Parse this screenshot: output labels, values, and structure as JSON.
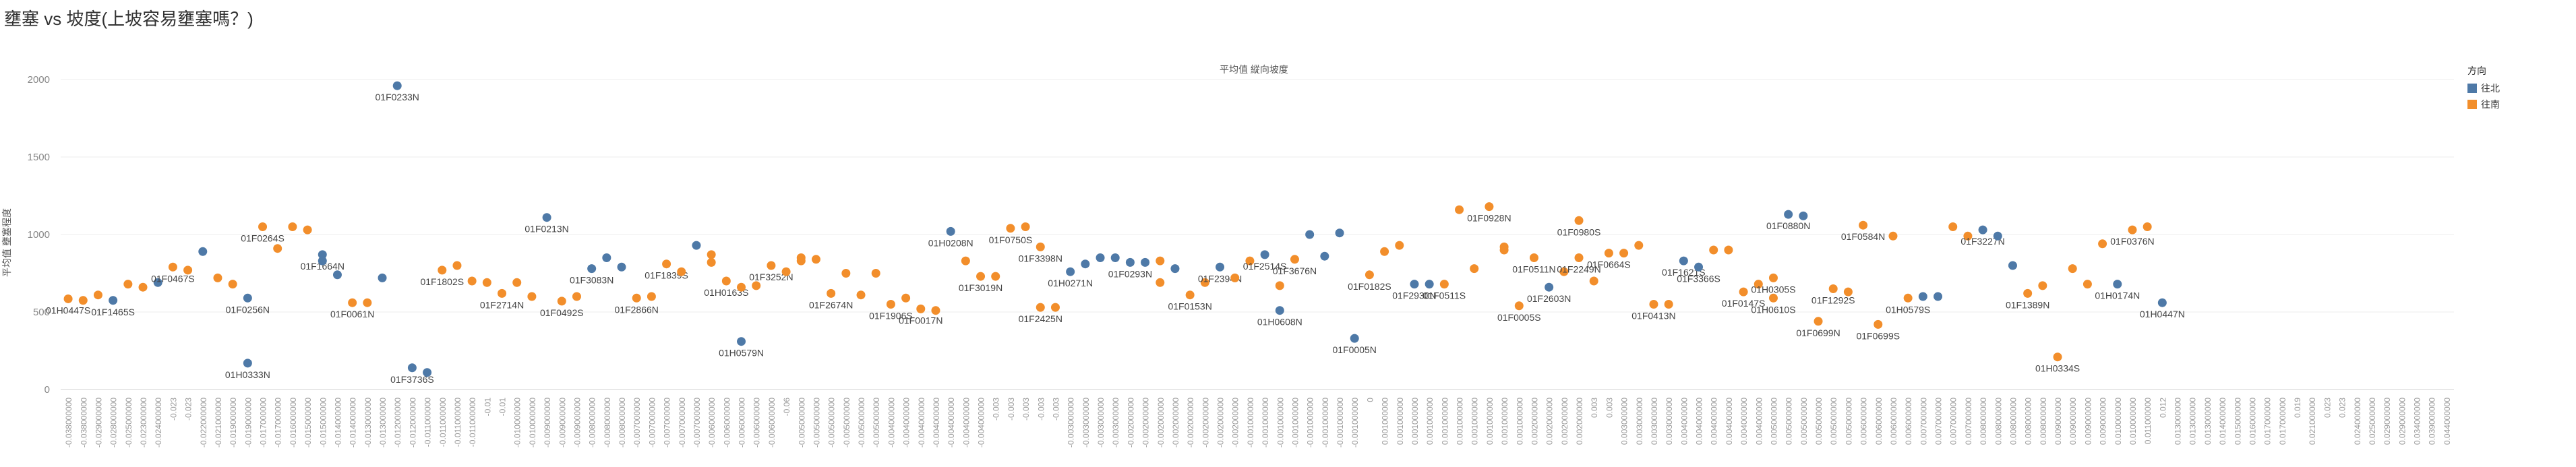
{
  "header": {
    "title": "壅塞 vs 坡度(上坡容易壅塞嗎？)"
  },
  "colors": {
    "north": "#4e79a7",
    "south": "#f28e2b",
    "grid": "#ececec",
    "axis": "#d0d0d0"
  },
  "chart_data": {
    "type": "scatter",
    "title": "平均值 縱向坡度",
    "xlabel": "",
    "ylabel": "平均值 壅塞程度",
    "ylim": [
      0,
      2000
    ],
    "yticks": [
      0,
      500,
      1000,
      1500,
      2000
    ],
    "grid": true,
    "legend_placement": "right",
    "legend_title": "方向",
    "series": [
      {
        "name": "往北",
        "color_key": "north"
      },
      {
        "name": "往南",
        "color_key": "south"
      }
    ],
    "categories": [
      "-0.038000000",
      "-0.038000000",
      "-0.029000000",
      "-0.028000000",
      "-0.025000000",
      "-0.023000000",
      "-0.024000000",
      "-0.023",
      "-0.023",
      "-0.022000000",
      "-0.021000000",
      "-0.019000000",
      "-0.019000000",
      "-0.017000000",
      "-0.017000000",
      "-0.016000000",
      "-0.015000000",
      "-0.015000000",
      "-0.014000000",
      "-0.014000000",
      "-0.013000000",
      "-0.013000000",
      "-0.012000000",
      "-0.012000000",
      "-0.011000000",
      "-0.011000000",
      "-0.011000000",
      "-0.011000000",
      "-0.01",
      "-0.01",
      "-0.010000000",
      "-0.010000000",
      "-0.009000000",
      "-0.009000000",
      "-0.009000000",
      "-0.008000000",
      "-0.008000000",
      "-0.008000000",
      "-0.007000000",
      "-0.007000000",
      "-0.007000000",
      "-0.007000000",
      "-0.007000000",
      "-0.006000000",
      "-0.006000000",
      "-0.006000000",
      "-0.006000000",
      "-0.006000000",
      "-0.06",
      "-0.005000000",
      "-0.005000000",
      "-0.005000000",
      "-0.005000000",
      "-0.005000000",
      "-0.005000000",
      "-0.004000000",
      "-0.004000000",
      "-0.004000000",
      "-0.004000000",
      "-0.004000000",
      "-0.004000000",
      "-0.004000000",
      "-0.003",
      "-0.003",
      "-0.003",
      "-0.003",
      "-0.003",
      "-0.003000000",
      "-0.003000000",
      "-0.003000000",
      "-0.003000000",
      "-0.002000000",
      "-0.002000000",
      "-0.002000000",
      "-0.002000000",
      "-0.002000000",
      "-0.002000000",
      "-0.002000000",
      "-0.002000000",
      "-0.001000000",
      "-0.001000000",
      "-0.001000000",
      "-0.001000000",
      "-0.001000000",
      "-0.001000000",
      "-0.001000000",
      "-0.001000000",
      "0",
      "0.001000000",
      "0.001000000",
      "0.001000000",
      "0.001000000",
      "0.001000000",
      "0.001000000",
      "0.001000000",
      "0.001000000",
      "0.001000000",
      "0.001000000",
      "0.002000000",
      "0.002000000",
      "0.002000000",
      "0.002000000",
      "0.003",
      "0.003",
      "0.003000000",
      "0.003000000",
      "0.003000000",
      "0.003000000",
      "0.004000000",
      "0.004000000",
      "0.004000000",
      "0.004000000",
      "0.004000000",
      "0.004000000",
      "0.005000000",
      "0.005000000",
      "0.005000000",
      "0.005000000",
      "0.005000000",
      "0.005000000",
      "0.006000000",
      "0.006000000",
      "0.006000000",
      "0.006000000",
      "0.007000000",
      "0.007000000",
      "0.007000000",
      "0.007000000",
      "0.008000000",
      "0.008000000",
      "0.008000000",
      "0.008000000",
      "0.008000000",
      "0.009000000",
      "0.009000000",
      "0.009000000",
      "0.009000000",
      "0.010000000",
      "0.010000000",
      "0.011000000",
      "0.012",
      "0.013000000",
      "0.013000000",
      "0.013000000",
      "0.014000000",
      "0.015000000",
      "0.016000000",
      "0.017000000",
      "0.017000000",
      "0.019",
      "0.021000000",
      "0.023",
      "0.023",
      "0.024000000",
      "0.025000000",
      "0.029000000",
      "0.029000000",
      "0.034000000",
      "0.039000000",
      "0.044000000"
    ],
    "points": [
      {
        "i": 0,
        "y": 585,
        "s": 1,
        "l": "01H0447S"
      },
      {
        "i": 1,
        "y": 575,
        "s": 1
      },
      {
        "i": 2,
        "y": 610,
        "s": 1
      },
      {
        "i": 3,
        "y": 575,
        "s": 0,
        "l": "01F1465S"
      },
      {
        "i": 4,
        "y": 680,
        "s": 1
      },
      {
        "i": 5,
        "y": 660,
        "s": 1
      },
      {
        "i": 6,
        "y": 690,
        "s": 0
      },
      {
        "i": 7,
        "y": 790,
        "s": 1,
        "l": "01F0467S"
      },
      {
        "i": 8,
        "y": 770,
        "s": 1
      },
      {
        "i": 9,
        "y": 890,
        "s": 0
      },
      {
        "i": 10,
        "y": 720,
        "s": 1
      },
      {
        "i": 11,
        "y": 680,
        "s": 1
      },
      {
        "i": 12,
        "y": 590,
        "s": 0,
        "l": "01F0256N"
      },
      {
        "i": 12,
        "y": 170,
        "s": 0,
        "l": "01H0333N"
      },
      {
        "i": 13,
        "y": 1050,
        "s": 1,
        "l": "01F0264S"
      },
      {
        "i": 14,
        "y": 910,
        "s": 1
      },
      {
        "i": 15,
        "y": 1050,
        "s": 1
      },
      {
        "i": 16,
        "y": 1030,
        "s": 1
      },
      {
        "i": 17,
        "y": 870,
        "s": 0,
        "l": "01F1664N"
      },
      {
        "i": 17,
        "y": 830,
        "s": 0
      },
      {
        "i": 18,
        "y": 740,
        "s": 0
      },
      {
        "i": 19,
        "y": 560,
        "s": 1,
        "l": "01F0061N"
      },
      {
        "i": 20,
        "y": 560,
        "s": 1
      },
      {
        "i": 21,
        "y": 720,
        "s": 0
      },
      {
        "i": 22,
        "y": 1960,
        "s": 0,
        "l": "01F0233N"
      },
      {
        "i": 23,
        "y": 140,
        "s": 0,
        "l": "01F3736S"
      },
      {
        "i": 24,
        "y": 110,
        "s": 0
      },
      {
        "i": 25,
        "y": 770,
        "s": 1,
        "l": "01F1802S"
      },
      {
        "i": 26,
        "y": 800,
        "s": 1
      },
      {
        "i": 27,
        "y": 700,
        "s": 1
      },
      {
        "i": 28,
        "y": 690,
        "s": 1
      },
      {
        "i": 29,
        "y": 620,
        "s": 1,
        "l": "01F2714N"
      },
      {
        "i": 30,
        "y": 690,
        "s": 1
      },
      {
        "i": 31,
        "y": 600,
        "s": 1
      },
      {
        "i": 32,
        "y": 1110,
        "s": 0,
        "l": "01F0213N"
      },
      {
        "i": 33,
        "y": 570,
        "s": 1,
        "l": "01F0492S"
      },
      {
        "i": 34,
        "y": 600,
        "s": 1
      },
      {
        "i": 35,
        "y": 780,
        "s": 0,
        "l": "01F3083N"
      },
      {
        "i": 36,
        "y": 850,
        "s": 0
      },
      {
        "i": 37,
        "y": 790,
        "s": 0
      },
      {
        "i": 38,
        "y": 590,
        "s": 1,
        "l": "01F2866N"
      },
      {
        "i": 39,
        "y": 600,
        "s": 1
      },
      {
        "i": 40,
        "y": 810,
        "s": 1,
        "l": "01F1839S"
      },
      {
        "i": 41,
        "y": 760,
        "s": 1
      },
      {
        "i": 42,
        "y": 930,
        "s": 0
      },
      {
        "i": 43,
        "y": 870,
        "s": 1
      },
      {
        "i": 43,
        "y": 820,
        "s": 1
      },
      {
        "i": 44,
        "y": 700,
        "s": 1,
        "l": "01H0163S"
      },
      {
        "i": 45,
        "y": 310,
        "s": 0,
        "l": "01H0579N"
      },
      {
        "i": 45,
        "y": 660,
        "s": 1
      },
      {
        "i": 46,
        "y": 670,
        "s": 1
      },
      {
        "i": 47,
        "y": 800,
        "s": 1,
        "l": "01F3252N"
      },
      {
        "i": 48,
        "y": 760,
        "s": 1
      },
      {
        "i": 49,
        "y": 830,
        "s": 1
      },
      {
        "i": 49,
        "y": 850,
        "s": 1
      },
      {
        "i": 50,
        "y": 840,
        "s": 1
      },
      {
        "i": 51,
        "y": 620,
        "s": 1,
        "l": "01F2674N"
      },
      {
        "i": 52,
        "y": 750,
        "s": 1
      },
      {
        "i": 53,
        "y": 610,
        "s": 1
      },
      {
        "i": 54,
        "y": 750,
        "s": 1
      },
      {
        "i": 55,
        "y": 550,
        "s": 1,
        "l": "01F1906S"
      },
      {
        "i": 56,
        "y": 590,
        "s": 1
      },
      {
        "i": 57,
        "y": 520,
        "s": 1,
        "l": "01F0017N"
      },
      {
        "i": 58,
        "y": 510,
        "s": 1
      },
      {
        "i": 59,
        "y": 1020,
        "s": 0,
        "l": "01H0208N"
      },
      {
        "i": 60,
        "y": 830,
        "s": 1
      },
      {
        "i": 61,
        "y": 730,
        "s": 1,
        "l": "01F3019N"
      },
      {
        "i": 62,
        "y": 730,
        "s": 1
      },
      {
        "i": 63,
        "y": 1040,
        "s": 1,
        "l": "01F0750S"
      },
      {
        "i": 64,
        "y": 1050,
        "s": 1
      },
      {
        "i": 65,
        "y": 920,
        "s": 1,
        "l": "01F3398N"
      },
      {
        "i": 65,
        "y": 530,
        "s": 1,
        "l": "01F2425N"
      },
      {
        "i": 66,
        "y": 530,
        "s": 1
      },
      {
        "i": 67,
        "y": 760,
        "s": 0,
        "l": "01H0271N"
      },
      {
        "i": 68,
        "y": 810,
        "s": 0
      },
      {
        "i": 69,
        "y": 850,
        "s": 0
      },
      {
        "i": 70,
        "y": 850,
        "s": 0
      },
      {
        "i": 71,
        "y": 820,
        "s": 0,
        "l": "01F0293N"
      },
      {
        "i": 72,
        "y": 820,
        "s": 0
      },
      {
        "i": 73,
        "y": 830,
        "s": 1
      },
      {
        "i": 73,
        "y": 690,
        "s": 1
      },
      {
        "i": 74,
        "y": 780,
        "s": 0
      },
      {
        "i": 75,
        "y": 610,
        "s": 1,
        "l": "01F0153N"
      },
      {
        "i": 76,
        "y": 690,
        "s": 1
      },
      {
        "i": 77,
        "y": 790,
        "s": 0,
        "l": "01F2394N"
      },
      {
        "i": 78,
        "y": 720,
        "s": 1
      },
      {
        "i": 79,
        "y": 830,
        "s": 1
      },
      {
        "i": 80,
        "y": 870,
        "s": 0,
        "l": "01F2514S"
      },
      {
        "i": 81,
        "y": 510,
        "s": 0,
        "l": "01H0608N"
      },
      {
        "i": 81,
        "y": 670,
        "s": 1
      },
      {
        "i": 82,
        "y": 840,
        "s": 1,
        "l": "01F3676N"
      },
      {
        "i": 83,
        "y": 1000,
        "s": 0
      },
      {
        "i": 84,
        "y": 860,
        "s": 0
      },
      {
        "i": 85,
        "y": 1010,
        "s": 0
      },
      {
        "i": 86,
        "y": 330,
        "s": 0,
        "l": "01F0005N"
      },
      {
        "i": 87,
        "y": 740,
        "s": 1,
        "l": "01F0182S"
      },
      {
        "i": 88,
        "y": 890,
        "s": 1
      },
      {
        "i": 89,
        "y": 930,
        "s": 1
      },
      {
        "i": 90,
        "y": 680,
        "s": 0,
        "l": "01F2930N"
      },
      {
        "i": 91,
        "y": 680,
        "s": 0
      },
      {
        "i": 92,
        "y": 680,
        "s": 1,
        "l": "01F0511S"
      },
      {
        "i": 93,
        "y": 1160,
        "s": 1
      },
      {
        "i": 94,
        "y": 780,
        "s": 1
      },
      {
        "i": 95,
        "y": 1180,
        "s": 1,
        "l": "01F0928N"
      },
      {
        "i": 96,
        "y": 900,
        "s": 1
      },
      {
        "i": 96,
        "y": 920,
        "s": 1
      },
      {
        "i": 97,
        "y": 540,
        "s": 1,
        "l": "01F0005S"
      },
      {
        "i": 98,
        "y": 850,
        "s": 1,
        "l": "01F0511N"
      },
      {
        "i": 99,
        "y": 660,
        "s": 0,
        "l": "01F2603N"
      },
      {
        "i": 100,
        "y": 760,
        "s": 1
      },
      {
        "i": 101,
        "y": 850,
        "s": 1,
        "l": "01F2249N"
      },
      {
        "i": 101,
        "y": 1090,
        "s": 1,
        "l": "01F0980S"
      },
      {
        "i": 102,
        "y": 700,
        "s": 1
      },
      {
        "i": 103,
        "y": 880,
        "s": 1,
        "l": "01F0664S"
      },
      {
        "i": 104,
        "y": 880,
        "s": 1
      },
      {
        "i": 105,
        "y": 930,
        "s": 1
      },
      {
        "i": 106,
        "y": 550,
        "s": 1,
        "l": "01F0413N"
      },
      {
        "i": 107,
        "y": 550,
        "s": 1
      },
      {
        "i": 108,
        "y": 830,
        "s": 0,
        "l": "01F1621S"
      },
      {
        "i": 109,
        "y": 790,
        "s": 0,
        "l": "01F3366S"
      },
      {
        "i": 110,
        "y": 900,
        "s": 1
      },
      {
        "i": 111,
        "y": 900,
        "s": 1
      },
      {
        "i": 112,
        "y": 630,
        "s": 1,
        "l": "01F0147S"
      },
      {
        "i": 113,
        "y": 680,
        "s": 1
      },
      {
        "i": 114,
        "y": 590,
        "s": 1,
        "l": "01H0610S"
      },
      {
        "i": 114,
        "y": 720,
        "s": 1,
        "l": "01H0305S"
      },
      {
        "i": 115,
        "y": 1130,
        "s": 0,
        "l": "01F0880N"
      },
      {
        "i": 116,
        "y": 1120,
        "s": 0
      },
      {
        "i": 117,
        "y": 440,
        "s": 1,
        "l": "01F0699N"
      },
      {
        "i": 118,
        "y": 650,
        "s": 1,
        "l": "01F1292S"
      },
      {
        "i": 119,
        "y": 630,
        "s": 1
      },
      {
        "i": 120,
        "y": 1060,
        "s": 1,
        "l": "01F0584N"
      },
      {
        "i": 121,
        "y": 420,
        "s": 1,
        "l": "01F0699S"
      },
      {
        "i": 122,
        "y": 990,
        "s": 1
      },
      {
        "i": 123,
        "y": 590,
        "s": 1,
        "l": "01H0579S"
      },
      {
        "i": 124,
        "y": 600,
        "s": 0
      },
      {
        "i": 125,
        "y": 600,
        "s": 0
      },
      {
        "i": 126,
        "y": 1050,
        "s": 1
      },
      {
        "i": 127,
        "y": 990,
        "s": 1
      },
      {
        "i": 128,
        "y": 1030,
        "s": 0,
        "l": "01F3227N"
      },
      {
        "i": 129,
        "y": 990,
        "s": 0
      },
      {
        "i": 130,
        "y": 800,
        "s": 0
      },
      {
        "i": 131,
        "y": 620,
        "s": 1,
        "l": "01F1389N"
      },
      {
        "i": 132,
        "y": 670,
        "s": 1
      },
      {
        "i": 133,
        "y": 210,
        "s": 1,
        "l": "01H0334S"
      },
      {
        "i": 134,
        "y": 780,
        "s": 1
      },
      {
        "i": 135,
        "y": 680,
        "s": 1
      },
      {
        "i": 136,
        "y": 940,
        "s": 1
      },
      {
        "i": 137,
        "y": 680,
        "s": 0,
        "l": "01H0174N"
      },
      {
        "i": 138,
        "y": 1030,
        "s": 1,
        "l": "01F0376N"
      },
      {
        "i": 139,
        "y": 1050,
        "s": 1
      },
      {
        "i": 140,
        "y": 560,
        "s": 0,
        "l": "01H0447N"
      }
    ]
  }
}
